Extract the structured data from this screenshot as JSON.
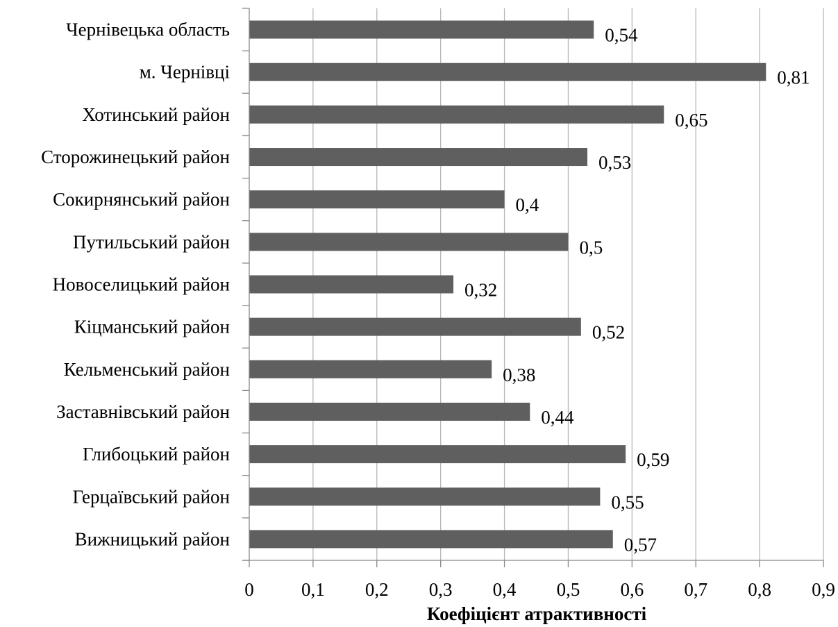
{
  "chart_data": {
    "type": "bar",
    "orientation": "horizontal",
    "categories": [
      "Чернівецька область",
      "м. Чернівці",
      "Хотинський район",
      "Сторожинецький район",
      "Сокирнянський район",
      "Путильський район",
      "Новоселицький район",
      "Кіцманський район",
      "Кельменський район",
      "Заставнівський район",
      "Глибоцький район",
      "Герцаївський район",
      "Вижницький район"
    ],
    "values": [
      0.54,
      0.81,
      0.65,
      0.53,
      0.4,
      0.5,
      0.32,
      0.52,
      0.38,
      0.44,
      0.59,
      0.55,
      0.57
    ],
    "data_labels": [
      "0,54",
      "0,81",
      "0,65",
      "0,53",
      "0,4",
      "0,5",
      "0,32",
      "0,52",
      "0,38",
      "0,44",
      "0,59",
      "0,55",
      "0,57"
    ],
    "xlim": [
      0,
      0.9
    ],
    "x_ticks": [
      0,
      0.1,
      0.2,
      0.3,
      0.4,
      0.5,
      0.6,
      0.7,
      0.8,
      0.9
    ],
    "x_tick_labels": [
      "0",
      "0,1",
      "0,2",
      "0,3",
      "0,4",
      "0,5",
      "0,6",
      "0,7",
      "0,8",
      "0,9"
    ],
    "xlabel": "Коефіцієнт атрактивності",
    "ylabel": "",
    "grid": "vertical",
    "legend": "none",
    "colors": {
      "bar": "#5f5f5f",
      "grid": "#b7b7b7",
      "axis": "#888888",
      "text": "#000000"
    }
  }
}
